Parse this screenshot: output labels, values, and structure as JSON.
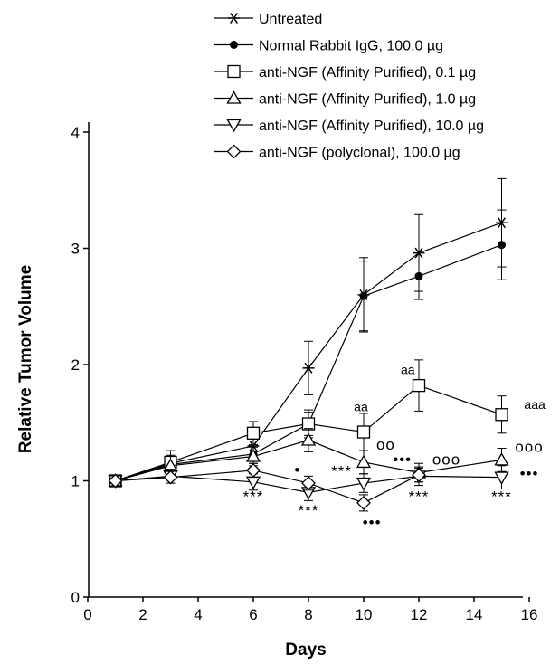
{
  "chart_data": {
    "type": "line",
    "xlabel": "Days",
    "ylabel": "Relative Tumor Volume",
    "xlim": [
      0,
      17
    ],
    "ylim": [
      0,
      4
    ],
    "x_ticks": [
      "0",
      "2",
      "4",
      "6",
      "8",
      "10",
      "12",
      "14",
      "16"
    ],
    "y_ticks": [
      "0",
      "1",
      "2",
      "3",
      "4"
    ],
    "grid": false,
    "legend_position": "top-right",
    "series": [
      {
        "name": "Untreated",
        "marker": "asterisk",
        "x": [
          1,
          3,
          6,
          8,
          10,
          12,
          15
        ],
        "y": [
          1.0,
          1.15,
          1.3,
          1.97,
          2.6,
          2.96,
          3.22
        ],
        "err": [
          0,
          0.07,
          0.08,
          0.23,
          0.32,
          0.33,
          0.38
        ]
      },
      {
        "name": "Normal Rabbit IgG, 100.0 µg",
        "marker": "filled-circle",
        "x": [
          1,
          3,
          6,
          8,
          10,
          12,
          15
        ],
        "y": [
          1.0,
          1.14,
          1.23,
          1.49,
          2.59,
          2.76,
          3.03
        ],
        "err": [
          0,
          0.07,
          0.08,
          0.1,
          0.3,
          0.2,
          0.3
        ]
      },
      {
        "name": "anti-NGF (Affinity Purified), 0.1 µg",
        "marker": "open-square",
        "x": [
          1,
          3,
          6,
          8,
          10,
          12,
          15
        ],
        "y": [
          1.0,
          1.16,
          1.41,
          1.49,
          1.42,
          1.82,
          1.57
        ],
        "err": [
          0,
          0.1,
          0.1,
          0.12,
          0.16,
          0.22,
          0.16
        ]
      },
      {
        "name": "anti-NGF (Affinity Purified), 1.0 µg",
        "marker": "open-triangle-up",
        "x": [
          1,
          3,
          6,
          8,
          10,
          12,
          15
        ],
        "y": [
          1.0,
          1.13,
          1.21,
          1.35,
          1.16,
          1.07,
          1.18
        ],
        "err": [
          0,
          0.08,
          0.08,
          0.1,
          0.1,
          0.08,
          0.1
        ]
      },
      {
        "name": "anti-NGF (Affinity Purified), 10.0 µg",
        "marker": "open-triangle-down",
        "x": [
          1,
          3,
          6,
          8,
          10,
          12,
          15
        ],
        "y": [
          1.0,
          1.04,
          0.99,
          0.9,
          0.98,
          1.04,
          1.03
        ],
        "err": [
          0,
          0.06,
          0.07,
          0.07,
          0.08,
          0.08,
          0.1
        ]
      },
      {
        "name": "anti-NGF (polyclonal), 100.0 µg",
        "marker": "open-diamond",
        "x": [
          1,
          3,
          6,
          8,
          10,
          12
        ],
        "y": [
          1.0,
          1.03,
          1.09,
          0.98,
          0.81,
          1.05
        ],
        "err": [
          0,
          0.05,
          0.06,
          0.06,
          0.07,
          0.06
        ]
      }
    ],
    "annotations": [
      {
        "text": "***",
        "x": 6,
        "y": 0.82
      },
      {
        "text": "***",
        "x": 8,
        "y": 0.7
      },
      {
        "text": "***",
        "x": 9.2,
        "y": 1.04
      },
      {
        "text": "***",
        "x": 12,
        "y": 0.82
      },
      {
        "text": "***",
        "x": 15,
        "y": 0.82
      },
      {
        "text": "•",
        "x": 7.6,
        "y": 1.05
      },
      {
        "text": "•••",
        "x": 10.3,
        "y": 0.6
      },
      {
        "text": "•••",
        "x": 11.4,
        "y": 1.14
      },
      {
        "text": "•••",
        "x": 16.0,
        "y": 1.02
      },
      {
        "text": "oo",
        "x": 10.8,
        "y": 1.27
      },
      {
        "text": "ooo",
        "x": 13.0,
        "y": 1.14
      },
      {
        "text": "ooo",
        "x": 16.0,
        "y": 1.25
      },
      {
        "text": "aa",
        "x": 9.9,
        "y": 1.6
      },
      {
        "text": "aa",
        "x": 11.6,
        "y": 1.92
      },
      {
        "text": "aaa",
        "x": 16.2,
        "y": 1.62
      }
    ]
  }
}
